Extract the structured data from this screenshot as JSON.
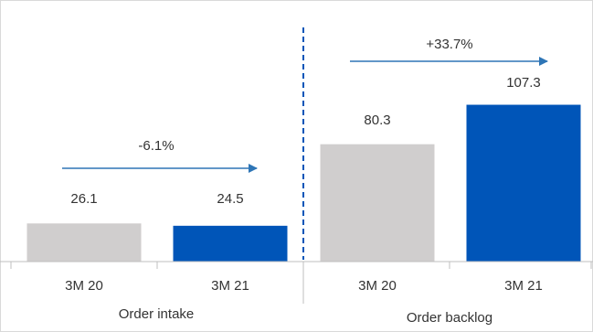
{
  "chart_data": {
    "type": "bar",
    "groups": [
      {
        "label": "Order intake",
        "categories": [
          "3M 20",
          "3M 21"
        ],
        "values": [
          26.1,
          24.5
        ],
        "value_labels": [
          "26.1",
          "24.5"
        ],
        "change_label": "-6.1%"
      },
      {
        "label": "Order backlog",
        "categories": [
          "3M 20",
          "3M 21"
        ],
        "values": [
          80.3,
          107.3
        ],
        "value_labels": [
          "80.3",
          "107.3"
        ],
        "change_label": "+33.7%"
      }
    ],
    "ylim": [
      0,
      110
    ],
    "grid": false,
    "legend": "none",
    "colors": {
      "previous": "#d0cece",
      "current": "#0055b8",
      "arrow": "#2e75b6",
      "divider": "#0055b8",
      "axis": "#bfbfbf"
    }
  }
}
